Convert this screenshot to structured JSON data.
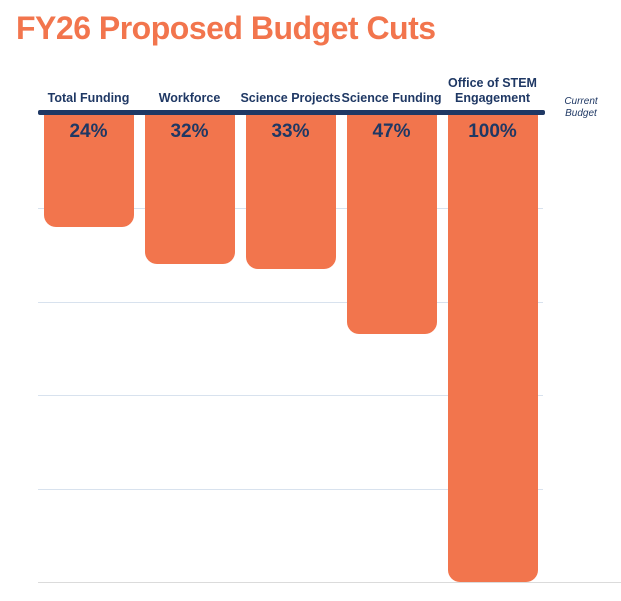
{
  "page": {
    "title": "FY26 Proposed Budget Cuts"
  },
  "chart_data": {
    "type": "bar",
    "title": "FY26 Proposed Budget Cuts",
    "direction": "downward-from-baseline",
    "categories": [
      "Total Funding",
      "Workforce",
      "Science Projects",
      "Science Funding",
      "Office of STEM Engagement"
    ],
    "values": [
      24,
      32,
      33,
      47,
      100
    ],
    "value_labels": [
      "24%",
      "32%",
      "33%",
      "47%",
      "100%"
    ],
    "ylim": [
      0,
      100
    ],
    "grid": true,
    "gridline_percents": [
      20,
      40,
      60,
      80,
      100
    ],
    "baseline_label": "Current Budget",
    "legend_position": "none"
  },
  "colors": {
    "accent_orange": "#F2754D",
    "navy": "#1F3864",
    "gridline": "#D8E2EE",
    "bottom_gridline": "#DBDBDB",
    "background": "#FFFFFF"
  }
}
